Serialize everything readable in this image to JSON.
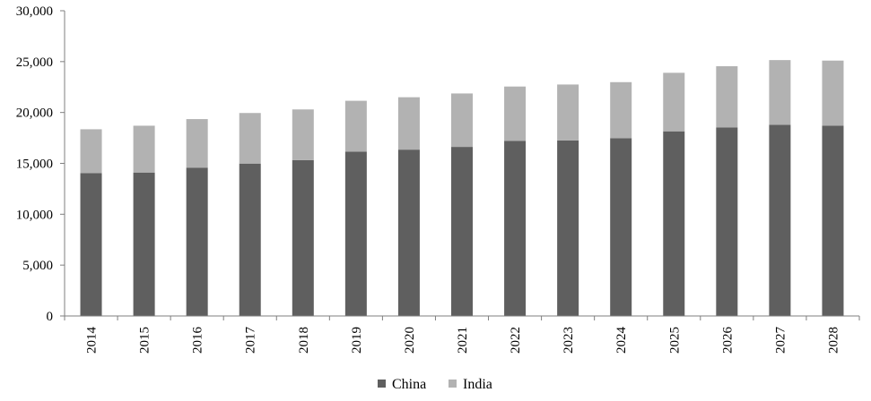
{
  "chart_data": {
    "type": "bar",
    "stacked": true,
    "title": "",
    "xlabel": "",
    "ylabel": "",
    "categories": [
      "2014",
      "2015",
      "2016",
      "2017",
      "2018",
      "2019",
      "2020",
      "2021",
      "2022",
      "2023",
      "2024",
      "2025",
      "2026",
      "2027",
      "2028"
    ],
    "series": [
      {
        "name": "China",
        "color": "#5f5f5f",
        "values": [
          14050,
          14100,
          14580,
          14980,
          15320,
          16150,
          16350,
          16620,
          17200,
          17250,
          17480,
          18150,
          18520,
          18800,
          18700
        ]
      },
      {
        "name": "India",
        "color": "#b2b2b2",
        "values": [
          4300,
          4600,
          4770,
          4970,
          4980,
          5000,
          5150,
          5250,
          5350,
          5500,
          5500,
          5750,
          6030,
          6350,
          6400
        ]
      }
    ],
    "ylim": [
      0,
      30000
    ],
    "yticks": [
      0,
      5000,
      10000,
      15000,
      20000,
      25000,
      30000
    ],
    "ytick_labels": [
      "0",
      "5,000",
      "10,000",
      "15,000",
      "20,000",
      "25,000",
      "30,000"
    ],
    "grid": false,
    "legend_position": "bottom-center"
  }
}
